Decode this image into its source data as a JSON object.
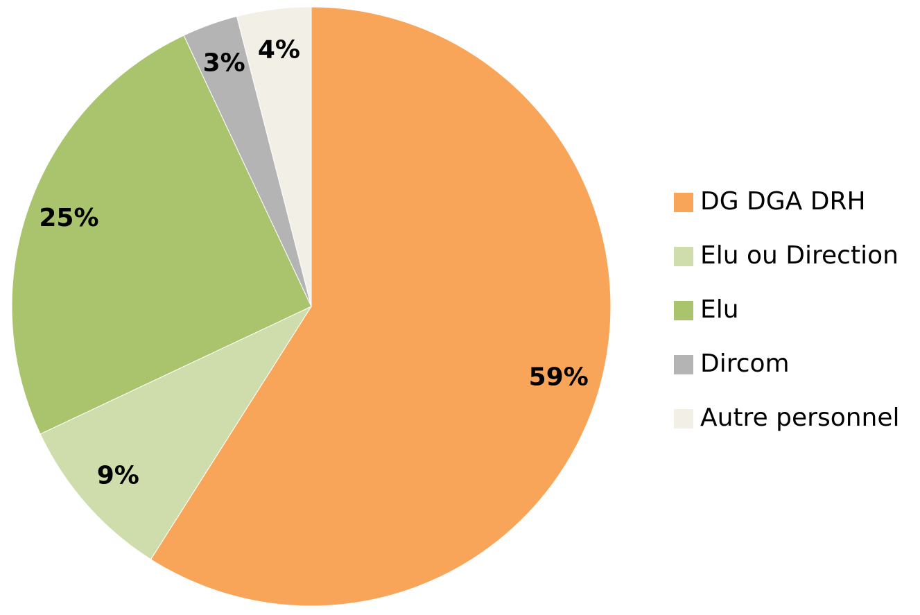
{
  "chart_data": {
    "type": "pie",
    "categories": [
      "DG DGA DRH",
      "Elu ou Direction",
      "Elu",
      "Dircom",
      "Autre personnel"
    ],
    "values": [
      59,
      9,
      25,
      3,
      4
    ],
    "value_labels": [
      "59%",
      "9%",
      "25%",
      "3%",
      "4%"
    ],
    "colors": [
      "#f8a55a",
      "#cfdcac",
      "#aac46e",
      "#b4b4b4",
      "#f2efe7"
    ],
    "legend": "right"
  }
}
